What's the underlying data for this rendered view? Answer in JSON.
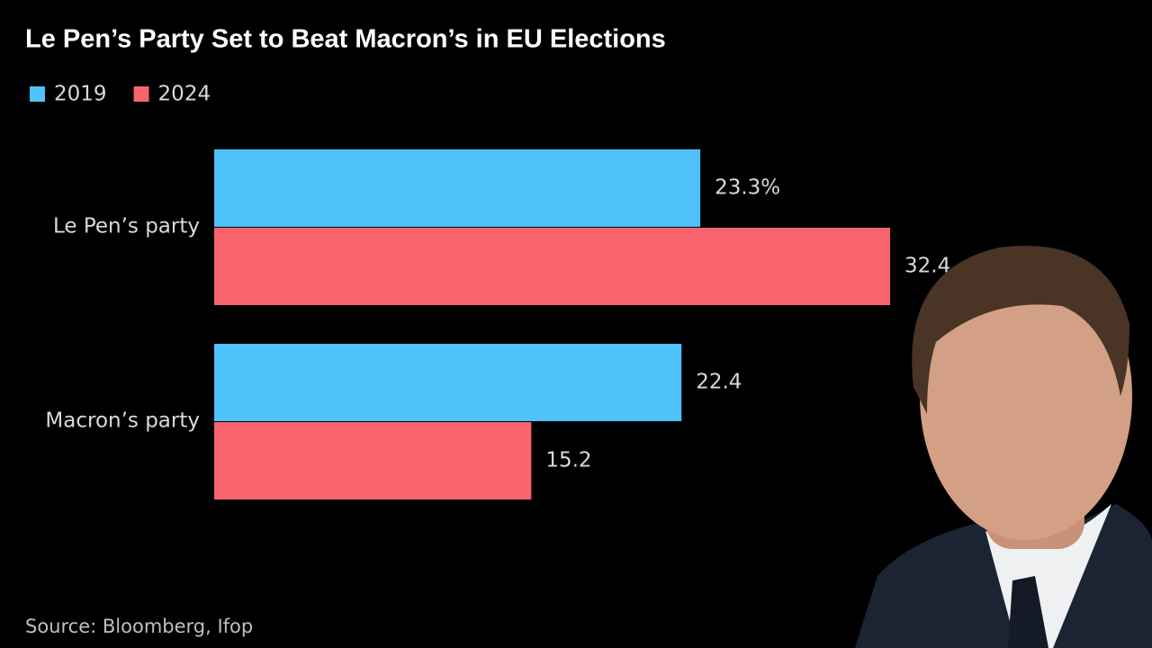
{
  "chart_data": {
    "type": "bar",
    "orientation": "horizontal",
    "title": "Le Pen’s Party Set to Beat Macron’s in EU Elections",
    "source": "Source: Bloomberg, Ifop",
    "categories": [
      "Le Pen’s party",
      "Macron’s party"
    ],
    "series": [
      {
        "name": "2019",
        "color": "#4fc1fb",
        "values": [
          23.3,
          22.4
        ],
        "value_labels": [
          "23.3%",
          "22.4"
        ]
      },
      {
        "name": "2024",
        "color": "#f7646e",
        "values": [
          32.4,
          15.2
        ],
        "value_labels": [
          "32.4",
          "15.2"
        ]
      }
    ]
  }
}
